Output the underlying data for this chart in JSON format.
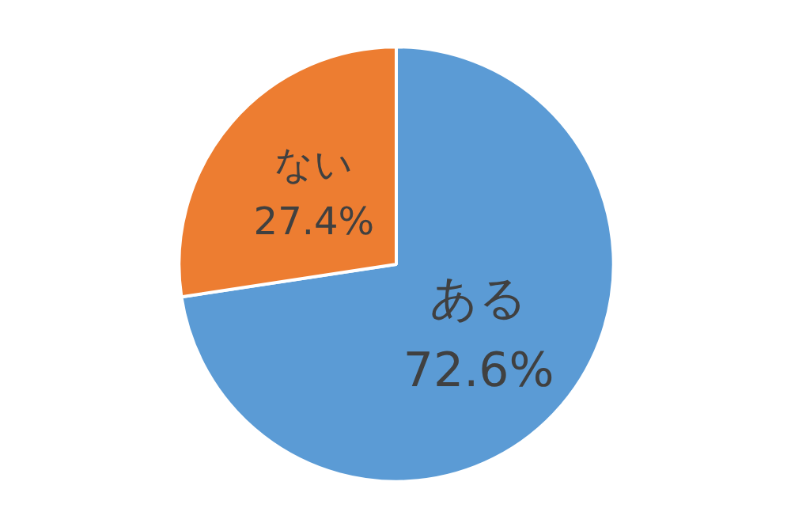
{
  "chart_data": {
    "type": "pie",
    "categories": [
      "ある",
      "ない"
    ],
    "values": [
      72.6,
      27.4
    ],
    "colors": [
      "#5b9bd5",
      "#ed7d31"
    ],
    "value_labels": [
      "72.6%",
      "27.4%"
    ]
  }
}
